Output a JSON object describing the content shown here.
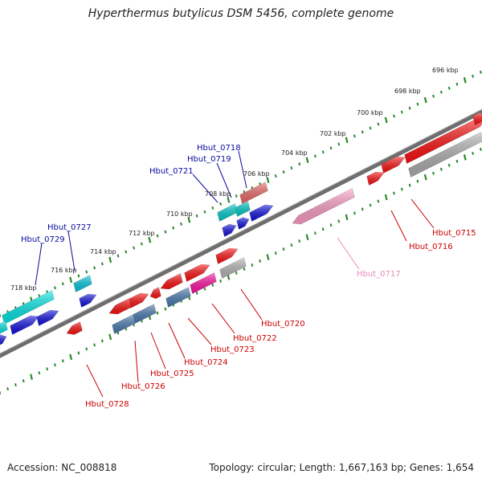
{
  "title": "Hyperthermus butylicus DSM 5456, complete genome",
  "footer": {
    "accession": "Accession: NC_008818",
    "summary": "Topology: circular; Length: 1,667,163 bp; Genes: 1,654"
  },
  "colors": {
    "backbone": "#707070",
    "ruler_dot": "#2a8a2a",
    "upper_label": "#0a0aa0",
    "lower_label": "#cc0000",
    "pink_label": "#e88ab8"
  },
  "scale_labels": [
    "696 kbp",
    "698 kbp",
    "700 kbp",
    "702 kbp",
    "704 kbp",
    "706 kbp",
    "708 kbp",
    "710 kbp",
    "712 kbp",
    "714 kbp",
    "716 kbp",
    "718 kbp"
  ],
  "gene_labels_top": [
    "Hbut_0718",
    "Hbut_0719",
    "Hbut_0721",
    "Hbut_0727",
    "Hbut_0729"
  ],
  "gene_labels_bottom": [
    "Hbut_0715",
    "Hbut_0716",
    "Hbut_0717",
    "Hbut_0720",
    "Hbut_0722",
    "Hbut_0723",
    "Hbut_0724",
    "Hbut_0725",
    "Hbut_0726",
    "Hbut_0728"
  ]
}
